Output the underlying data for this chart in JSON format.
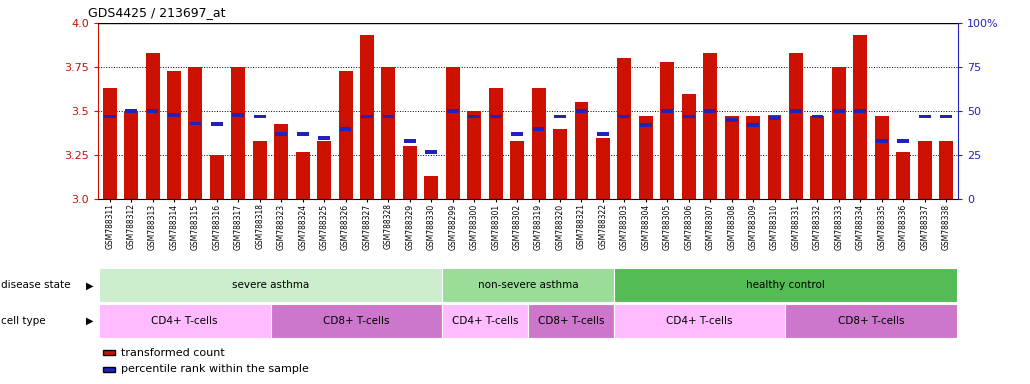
{
  "title": "GDS4425 / 213697_at",
  "samples": [
    "GSM788311",
    "GSM788312",
    "GSM788313",
    "GSM788314",
    "GSM788315",
    "GSM788316",
    "GSM788317",
    "GSM788318",
    "GSM788323",
    "GSM788324",
    "GSM788325",
    "GSM788326",
    "GSM788327",
    "GSM788328",
    "GSM788329",
    "GSM788330",
    "GSM788299",
    "GSM788300",
    "GSM788301",
    "GSM788302",
    "GSM788319",
    "GSM788320",
    "GSM788321",
    "GSM788322",
    "GSM788303",
    "GSM788304",
    "GSM788305",
    "GSM788306",
    "GSM788307",
    "GSM788308",
    "GSM788309",
    "GSM788310",
    "GSM788331",
    "GSM788332",
    "GSM788333",
    "GSM788334",
    "GSM788335",
    "GSM788336",
    "GSM788337",
    "GSM788338"
  ],
  "red_values": [
    3.63,
    3.5,
    3.83,
    3.73,
    3.75,
    3.25,
    3.75,
    3.33,
    3.43,
    3.27,
    3.33,
    3.73,
    3.93,
    3.75,
    3.3,
    3.13,
    3.75,
    3.5,
    3.63,
    3.33,
    3.63,
    3.4,
    3.55,
    3.35,
    3.8,
    3.47,
    3.78,
    3.6,
    3.83,
    3.47,
    3.47,
    3.48,
    3.83,
    3.47,
    3.75,
    3.93,
    3.47,
    3.27,
    3.33,
    3.33
  ],
  "blue_values": [
    3.47,
    3.5,
    3.5,
    3.48,
    3.43,
    3.425,
    3.48,
    3.47,
    3.37,
    3.37,
    3.35,
    3.4,
    3.47,
    3.47,
    3.33,
    3.27,
    3.5,
    3.47,
    3.47,
    3.37,
    3.4,
    3.47,
    3.5,
    3.37,
    3.47,
    3.42,
    3.5,
    3.47,
    3.5,
    3.45,
    3.42,
    3.46,
    3.5,
    3.47,
    3.5,
    3.5,
    3.33,
    3.33,
    3.47,
    3.47
  ],
  "ymin": 3.0,
  "ymax": 4.0,
  "yticks_left": [
    3.0,
    3.25,
    3.5,
    3.75,
    4.0
  ],
  "yticks_right_pct": [
    0,
    25,
    50,
    75,
    100
  ],
  "grid_lines": [
    3.25,
    3.5,
    3.75
  ],
  "disease_state_groups": [
    {
      "label": "severe asthma",
      "start": 0,
      "end": 16,
      "color": "#cceecc"
    },
    {
      "label": "non-severe asthma",
      "start": 16,
      "end": 24,
      "color": "#99dd99"
    },
    {
      "label": "healthy control",
      "start": 24,
      "end": 40,
      "color": "#55bb55"
    }
  ],
  "cell_type_groups": [
    {
      "label": "CD4+ T-cells",
      "start": 0,
      "end": 8,
      "color": "#ffbbff"
    },
    {
      "label": "CD8+ T-cells",
      "start": 8,
      "end": 16,
      "color": "#cc77cc"
    },
    {
      "label": "CD4+ T-cells",
      "start": 16,
      "end": 20,
      "color": "#ffbbff"
    },
    {
      "label": "CD8+ T-cells",
      "start": 20,
      "end": 24,
      "color": "#cc77cc"
    },
    {
      "label": "CD4+ T-cells",
      "start": 24,
      "end": 32,
      "color": "#ffbbff"
    },
    {
      "label": "CD8+ T-cells",
      "start": 32,
      "end": 40,
      "color": "#cc77cc"
    }
  ],
  "bar_color": "#cc1100",
  "blue_color": "#2222bb",
  "label_red": "transformed count",
  "label_blue": "percentile rank within the sample",
  "fig_width": 10.3,
  "fig_height": 3.84,
  "dpi": 100
}
